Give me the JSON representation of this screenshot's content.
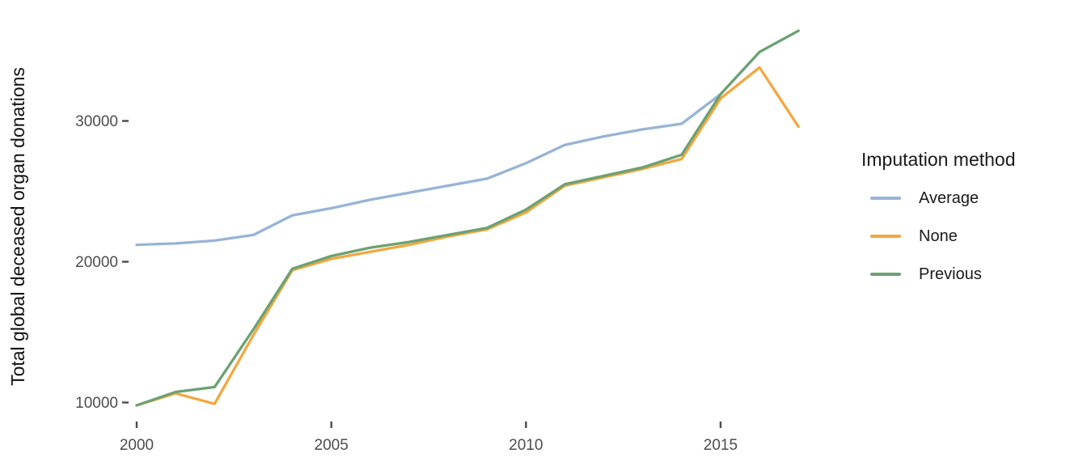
{
  "figure": {
    "kind": "ggplot-style line chart",
    "background": "#ffffff"
  },
  "chart_data": {
    "type": "line",
    "title": "",
    "xlabel": "",
    "ylabel": "Total global deceased organ donations",
    "x": [
      2000,
      2001,
      2002,
      2003,
      2004,
      2005,
      2006,
      2007,
      2008,
      2009,
      2010,
      2011,
      2012,
      2013,
      2014,
      2015,
      2016,
      2017
    ],
    "x_ticks": [
      2000,
      2005,
      2010,
      2015
    ],
    "y_ticks": [
      10000,
      20000,
      30000
    ],
    "xlim": [
      1999.6,
      2017.5
    ],
    "ylim": [
      9500,
      37200
    ],
    "grid": false,
    "legend": {
      "title": "Imputation method",
      "position": "right"
    },
    "series": [
      {
        "name": "Average",
        "color": "#96B4D6",
        "values": [
          21200,
          21300,
          21500,
          21900,
          23300,
          23800,
          24400,
          24900,
          25400,
          25900,
          27000,
          28300,
          28900,
          29400,
          29800,
          31900,
          null,
          null
        ]
      },
      {
        "name": "None",
        "color": "#F3A73F",
        "values": [
          9800,
          10650,
          9900,
          14800,
          19400,
          20200,
          20700,
          21200,
          21800,
          22300,
          23500,
          25400,
          26000,
          26600,
          27300,
          31600,
          33800,
          29600
        ]
      },
      {
        "name": "Previous",
        "color": "#6CA172",
        "values": [
          9800,
          10750,
          11100,
          15200,
          19500,
          20400,
          21000,
          21400,
          21900,
          22400,
          23700,
          25500,
          26100,
          26700,
          27600,
          31900,
          34900,
          36400
        ]
      }
    ],
    "axis_text_color": "#4d4d4d",
    "axis_title_color": "#111111",
    "tick_color": "#4a4a4a"
  }
}
